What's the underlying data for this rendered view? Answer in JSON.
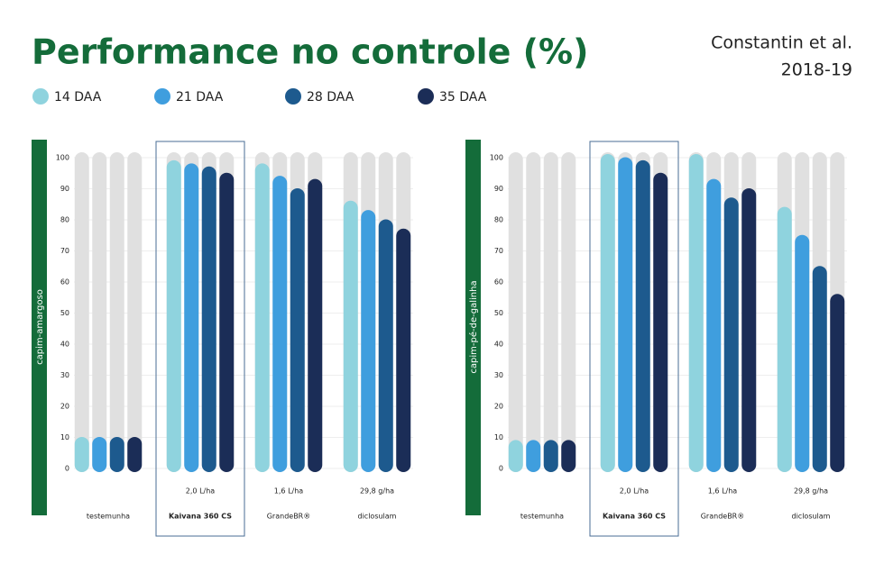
{
  "title": "Performance no controle (%)",
  "source": [
    "Constantin et al.",
    "2018-19"
  ],
  "chart_data": [
    {
      "type": "bar",
      "ylabel": "capim-amargoso",
      "categories": [
        "testemunha",
        "Kaivana 360 CS",
        "GrandeBR®",
        "diclosulam"
      ],
      "doses": [
        null,
        "2,0 L/ha",
        "1,6 L/ha",
        "29,8 g/ha"
      ],
      "highlight": "Kaivana 360 CS",
      "series": [
        {
          "name": "14 DAA",
          "color": "#8fd3de",
          "values": [
            9,
            98,
            97,
            85
          ]
        },
        {
          "name": "21 DAA",
          "color": "#3f9ede",
          "values": [
            9,
            97,
            93,
            82
          ]
        },
        {
          "name": "28 DAA",
          "color": "#1d5a8e",
          "values": [
            9,
            96,
            89,
            79
          ]
        },
        {
          "name": "35 DAA",
          "color": "#1b2d57",
          "values": [
            9,
            94,
            92,
            76
          ]
        }
      ],
      "ylim": [
        0,
        100
      ],
      "yticks": [
        0,
        10,
        20,
        30,
        40,
        50,
        60,
        70,
        80,
        90,
        100
      ],
      "grid": true
    },
    {
      "type": "bar",
      "ylabel": "capim-pé-de-galinha",
      "categories": [
        "testemunha",
        "Kaivana 360 CS",
        "GrandeBR®",
        "diclosulam"
      ],
      "doses": [
        null,
        "2,0 L/ha",
        "1,6 L/ha",
        "29,8 g/ha"
      ],
      "highlight": "Kaivana 360 CS",
      "series": [
        {
          "name": "14 DAA",
          "color": "#8fd3de",
          "values": [
            8,
            100,
            100,
            83
          ]
        },
        {
          "name": "21 DAA",
          "color": "#3f9ede",
          "values": [
            8,
            99,
            92,
            74
          ]
        },
        {
          "name": "28 DAA",
          "color": "#1d5a8e",
          "values": [
            8,
            98,
            86,
            64
          ]
        },
        {
          "name": "35 DAA",
          "color": "#1b2d57",
          "values": [
            8,
            94,
            89,
            55
          ]
        }
      ],
      "ylim": [
        0,
        100
      ],
      "yticks": [
        0,
        10,
        20,
        30,
        40,
        50,
        60,
        70,
        80,
        90,
        100
      ],
      "grid": true
    }
  ]
}
